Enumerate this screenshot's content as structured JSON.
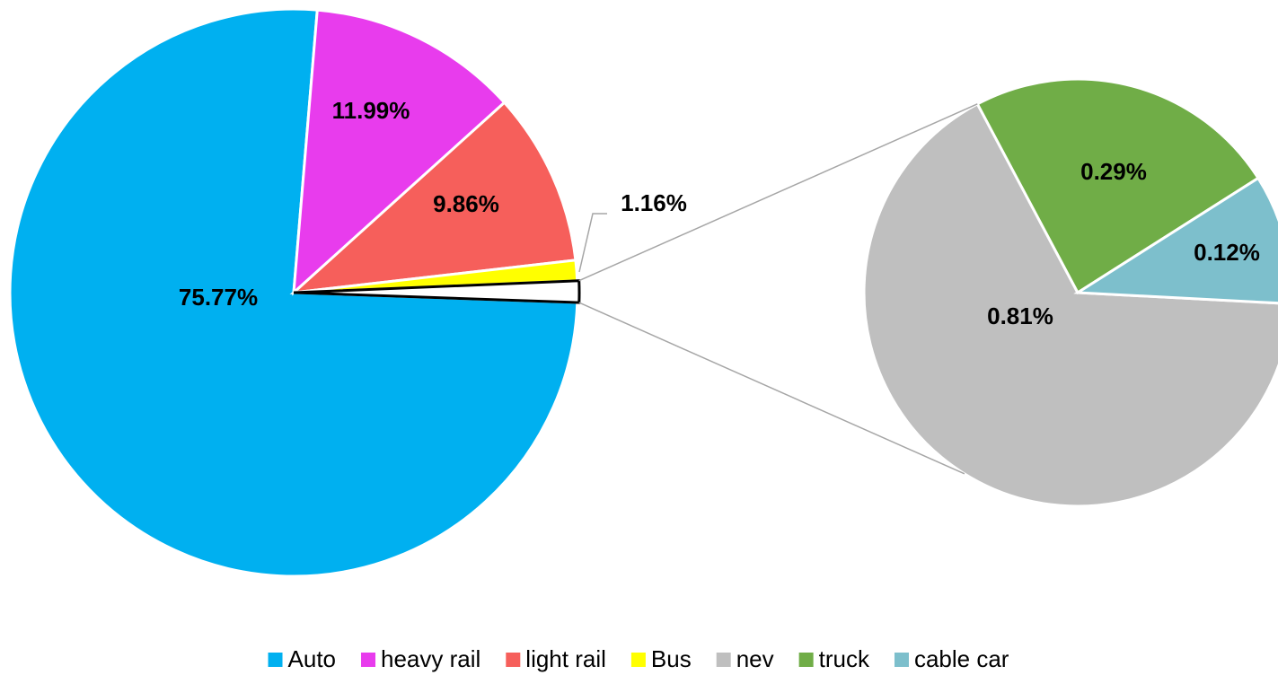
{
  "chart_data": {
    "type": "pie",
    "categories": [
      "Auto",
      "heavy rail",
      "light rail",
      "Bus"
    ],
    "values": [
      75.77,
      11.99,
      9.86,
      1.16
    ],
    "value_labels": [
      "75.77%",
      "11.99%",
      "9.86%",
      "1.16%"
    ],
    "colors": [
      "#00b0f0",
      "#e83ced",
      "#f65f5b",
      "#ffff00"
    ],
    "secondary": {
      "categories": [
        "nev",
        "truck",
        "cable car"
      ],
      "values": [
        0.81,
        0.29,
        0.12
      ],
      "value_labels": [
        "0.81%",
        "0.29%",
        "0.12%"
      ],
      "colors": [
        "#bfbfbf",
        "#70ad47",
        "#7dbfcc"
      ]
    }
  }
}
